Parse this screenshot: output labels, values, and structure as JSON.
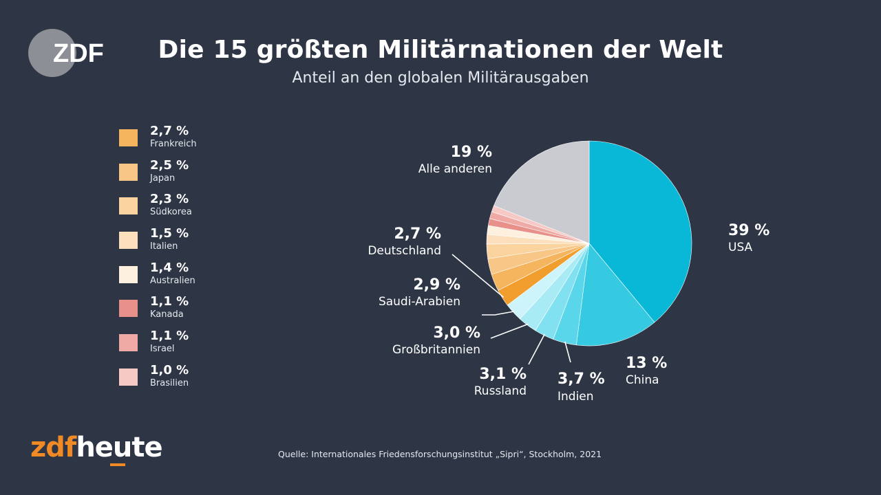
{
  "header": {
    "title": "Die 15 größten Militärnationen der Welt",
    "subtitle": "Anteil an den globalen Militärausgaben"
  },
  "logos": {
    "zdf": "ZDF",
    "brand_zdf": "zdf",
    "brand_heute": "heute"
  },
  "source": "Quelle: Internationales Friedensforschungsinstitut „Sipri“, Stockholm, 2021",
  "chart_data": {
    "type": "pie",
    "unit": "%",
    "slices": [
      {
        "name": "USA",
        "value": 39,
        "label": "39 %",
        "color": "#09b8d6"
      },
      {
        "name": "China",
        "value": 13,
        "label": "13 %",
        "color": "#35cae2"
      },
      {
        "name": "Indien",
        "value": 3.7,
        "label": "3,7 %",
        "color": "#5ad6eb"
      },
      {
        "name": "Russland",
        "value": 3.1,
        "label": "3,1 %",
        "color": "#82e1f0"
      },
      {
        "name": "Großbritannien",
        "value": 3.0,
        "label": "3,0 %",
        "color": "#a8ebf5"
      },
      {
        "name": "Saudi-Arabien",
        "value": 2.9,
        "label": "2,9 %",
        "color": "#cdf4fa"
      },
      {
        "name": "Deutschland",
        "value": 2.7,
        "label": "2,7 %",
        "color": "#f29e2e"
      },
      {
        "name": "Frankreich",
        "value": 2.7,
        "label": "2,7 %",
        "color": "#f5b55e"
      },
      {
        "name": "Japan",
        "value": 2.5,
        "label": "2,5 %",
        "color": "#f8c787"
      },
      {
        "name": "Südkorea",
        "value": 2.3,
        "label": "2,3 %",
        "color": "#fad39e"
      },
      {
        "name": "Italien",
        "value": 1.5,
        "label": "1,5 %",
        "color": "#fce0bd"
      },
      {
        "name": "Australien",
        "value": 1.4,
        "label": "1,4 %",
        "color": "#fdf0de"
      },
      {
        "name": "Kanada",
        "value": 1.1,
        "label": "1,1 %",
        "color": "#e8918a"
      },
      {
        "name": "Israel",
        "value": 1.1,
        "label": "1,1 %",
        "color": "#efaaa5"
      },
      {
        "name": "Brasilien",
        "value": 1.0,
        "label": "1,0 %",
        "color": "#f6c9c4"
      },
      {
        "name": "Alle anderen",
        "value": 19,
        "label": "19 %",
        "color": "#cacbd1"
      }
    ],
    "legend": [
      {
        "value": "2,7 %",
        "name": "Frankreich",
        "color": "#f5b55e"
      },
      {
        "value": "2,5 %",
        "name": "Japan",
        "color": "#f8c787"
      },
      {
        "value": "2,3 %",
        "name": "Südkorea",
        "color": "#fad39e"
      },
      {
        "value": "1,5 %",
        "name": "Italien",
        "color": "#fce0bd"
      },
      {
        "value": "1,4 %",
        "name": "Australien",
        "color": "#fdf0de"
      },
      {
        "value": "1,1 %",
        "name": "Kanada",
        "color": "#e8918a"
      },
      {
        "value": "1,1 %",
        "name": "Israel",
        "color": "#efaaa5"
      },
      {
        "value": "1,0 %",
        "name": "Brasilien",
        "color": "#f6c9c4"
      }
    ],
    "legend_placement": "left"
  }
}
